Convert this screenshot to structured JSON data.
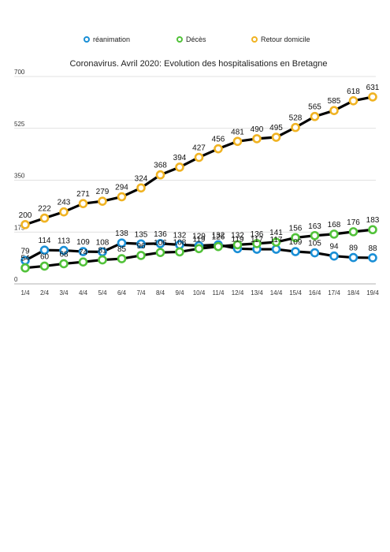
{
  "chart_data": {
    "type": "line",
    "title": "Coronavirus. Avril 2020: Evolution des hospitalisations en Bretagne",
    "xlabel": "",
    "ylabel": "",
    "categories": [
      "1/4",
      "2/4",
      "3/4",
      "4/4",
      "5/4",
      "6/4",
      "7/4",
      "8/4",
      "9/4",
      "10/4",
      "11/4",
      "12/4",
      "13/4",
      "14/4",
      "15/4",
      "16/4",
      "17/4",
      "18/4",
      "19/4"
    ],
    "ylim": [
      0,
      700
    ],
    "yticks": [
      "0",
      "175",
      "350",
      "525",
      "700"
    ],
    "grid": true,
    "legend_position": "top",
    "series": [
      {
        "name": "réanimation",
        "color": "#1a8fd6",
        "values": [
          79,
          114,
          113,
          109,
          108,
          138,
          135,
          136,
          132,
          129,
          132,
          119,
          117,
          117,
          109,
          105,
          94,
          89,
          88
        ]
      },
      {
        "name": "Décès",
        "color": "#52c23a",
        "values": [
          54,
          60,
          68,
          74,
          81,
          85,
          96,
          106,
          108,
          119,
          126,
          132,
          136,
          141,
          156,
          163,
          168,
          176,
          183
        ]
      },
      {
        "name": "Retour domicile",
        "color": "#f0b323",
        "values": [
          200,
          222,
          243,
          271,
          279,
          294,
          324,
          368,
          394,
          427,
          456,
          481,
          490,
          495,
          528,
          565,
          585,
          618,
          631
        ]
      }
    ]
  }
}
